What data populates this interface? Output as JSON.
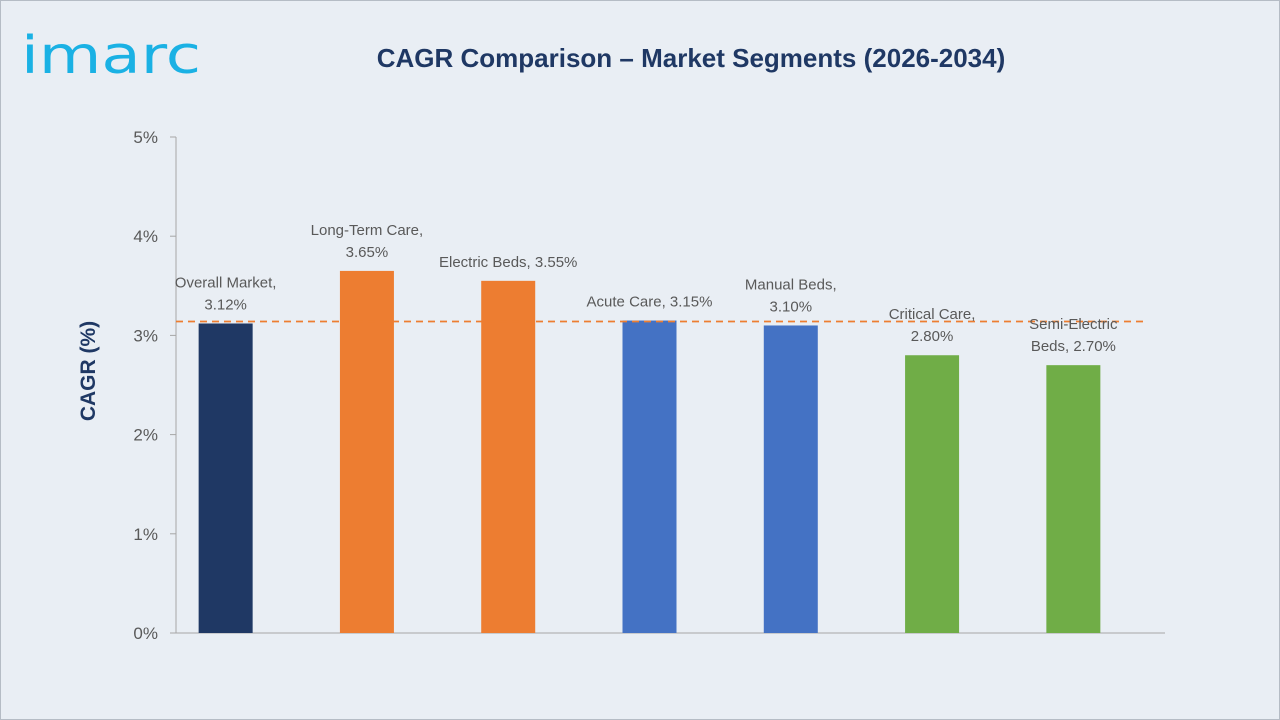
{
  "brand": {
    "name": "imarc",
    "color": "#1ab1e4"
  },
  "chart_data": {
    "type": "bar",
    "title": "CAGR Comparison – Market Segments (2026-2034)",
    "xlabel": "",
    "ylabel": "CAGR (%)",
    "ylim": [
      0,
      5
    ],
    "yticks": [
      "0%",
      "1%",
      "2%",
      "3%",
      "4%",
      "5%"
    ],
    "grid": false,
    "categories": [
      "Overall Market",
      "Long-Term Care",
      "Electric Beds",
      "Acute Care",
      "Manual Beds",
      "Critical Care",
      "Semi-Electric Beds"
    ],
    "values": [
      3.12,
      3.65,
      3.55,
      3.15,
      3.1,
      2.8,
      2.7
    ],
    "colors": [
      "#1f3864",
      "#ed7d31",
      "#ed7d31",
      "#4472c4",
      "#4472c4",
      "#70ad47",
      "#70ad47"
    ],
    "data_labels": [
      [
        "Overall Market,",
        "3.12%"
      ],
      [
        "Long-Term Care,",
        "3.65%"
      ],
      [
        "Electric Beds, 3.55%"
      ],
      [
        "Acute Care, 3.15%"
      ],
      [
        "Manual Beds,",
        "3.10%"
      ],
      [
        "Critical Care,",
        "2.80%"
      ],
      [
        "Semi-Electric",
        "Beds, 2.70%"
      ]
    ],
    "reference_line": {
      "value": 3.15,
      "style": "dashed",
      "color": "#ed7d31"
    }
  }
}
